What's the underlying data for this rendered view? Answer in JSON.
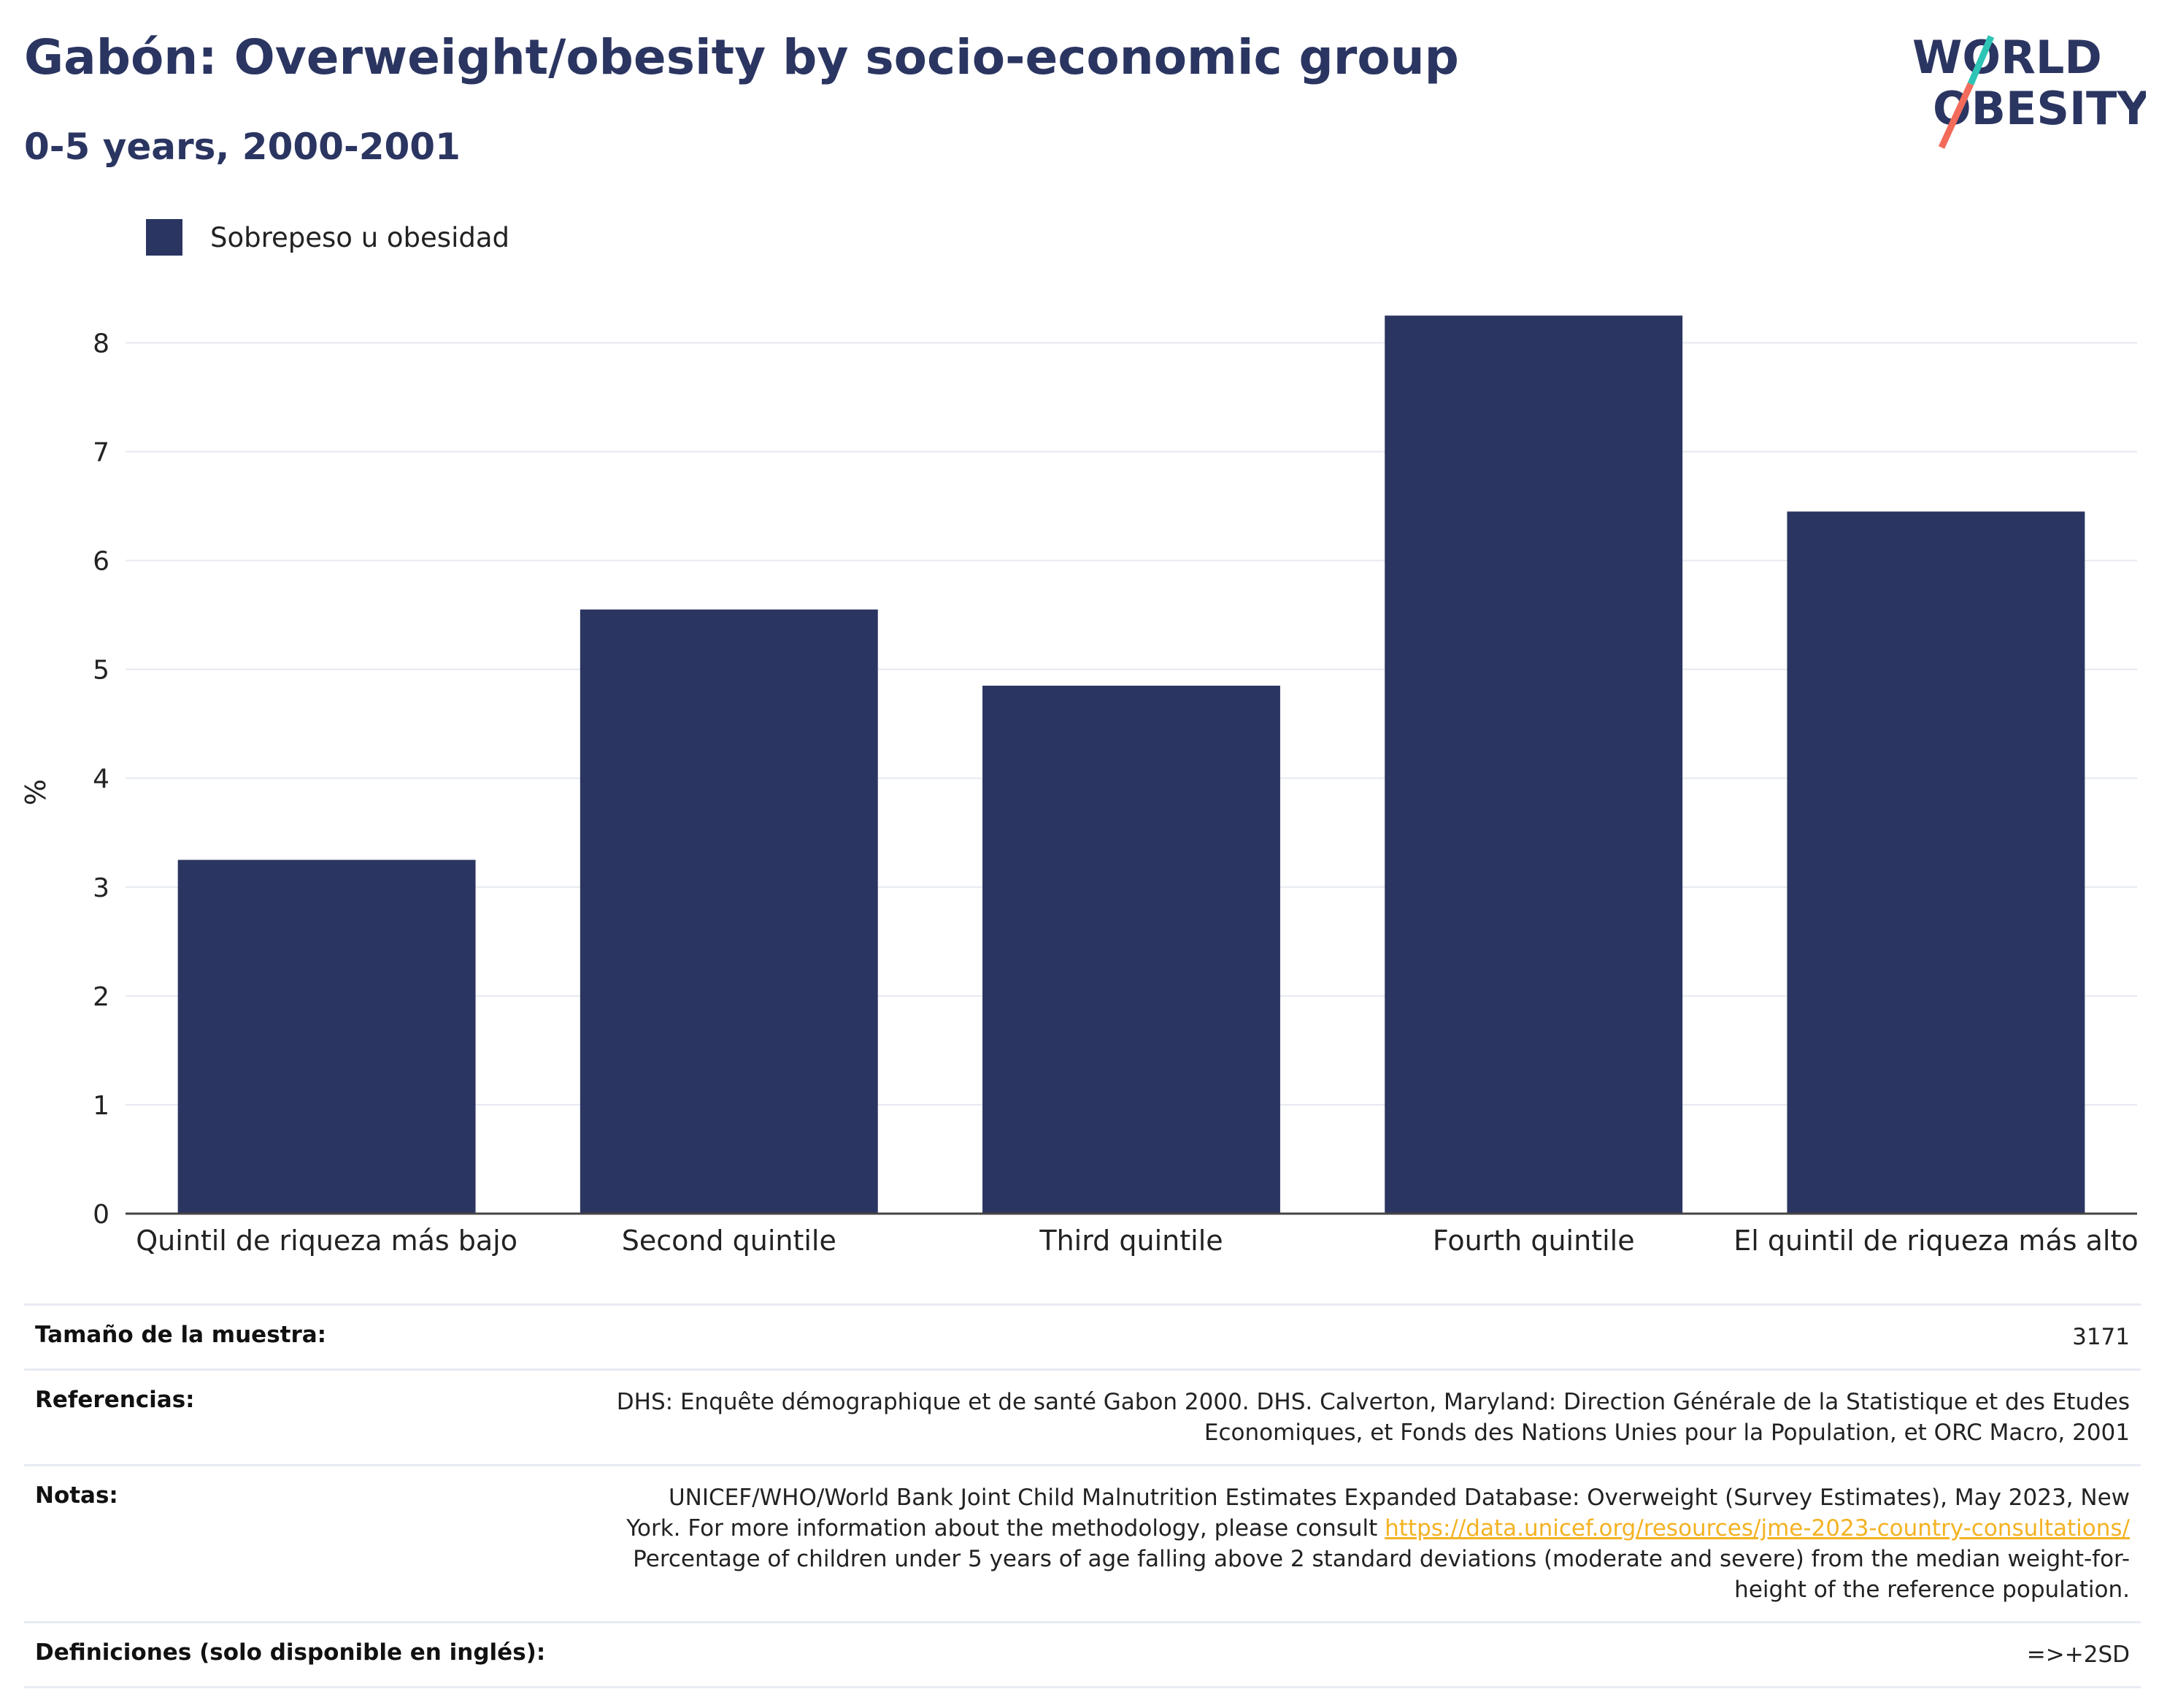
{
  "header": {
    "title": "Gabón: Overweight/obesity by socio-economic group",
    "subtitle": "0-5 years, 2000-2001"
  },
  "logo": {
    "line1": "WORLD",
    "line2": "OBESITY",
    "colors": {
      "navy": "#2b3561",
      "teal": "#2ec4b6",
      "coral": "#f26b5b"
    }
  },
  "legend": {
    "label": "Sobrepeso u obesidad",
    "color": "#2b3561"
  },
  "chart_data": {
    "type": "bar",
    "categories": [
      "Quintil de riqueza más bajo",
      "Second quintile",
      "Third quintile",
      "Fourth quintile",
      "El quintil de riqueza más alto"
    ],
    "series": [
      {
        "name": "Sobrepeso u obesidad",
        "values": [
          3.25,
          5.55,
          4.85,
          8.25,
          6.45
        ],
        "color": "#2b3561"
      }
    ],
    "ylabel": "%",
    "ylim": [
      0,
      8.6
    ],
    "yticks": [
      0,
      1,
      2,
      3,
      4,
      5,
      6,
      7,
      8
    ],
    "grid": true
  },
  "info": {
    "sample": {
      "label": "Tamaño de la muestra:",
      "value": "3171"
    },
    "references": {
      "label": "Referencias:",
      "line1": "DHS: Enquête démographique et de santé Gabon 2000. DHS. Calverton, Maryland: Direction Générale de la Statistique et des Etudes",
      "line2": "Economiques, et Fonds des Nations Unies pour la Population, et ORC Macro, 2001"
    },
    "notes": {
      "label": "Notas:",
      "line1": "UNICEF/WHO/World Bank Joint Child Malnutrition Estimates Expanded Database: Overweight (Survey Estimates), May 2023, New",
      "line2_prefix": "York. For more information about the methodology, please consult",
      "link": "https://data.unicef.org/resources/jme-2023-country-consultations/",
      "line3": "Percentage of children under 5 years of age falling above 2 standard deviations (moderate and severe) from the median weight-for-",
      "line4": "height of the reference population."
    },
    "definitions": {
      "label": "Definiciones (solo disponible en inglés):",
      "value": "=>+2SD"
    }
  }
}
